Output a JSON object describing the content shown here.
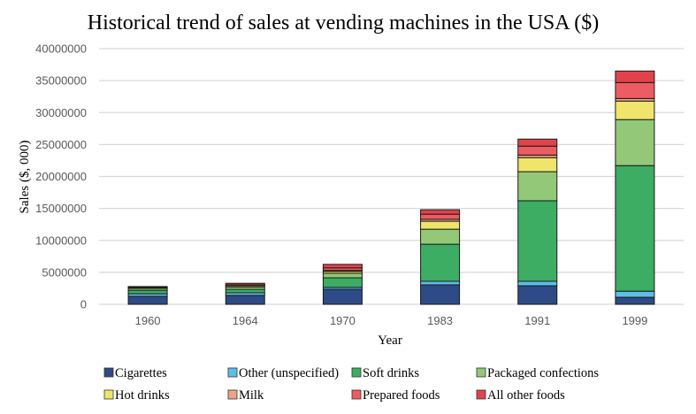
{
  "chart_data": {
    "type": "bar",
    "stacked": true,
    "title": "Historical trend of sales at vending machines in the USA ($)",
    "xlabel": "Year",
    "ylabel": "Sales ($, 000)",
    "ylim": [
      0,
      40000000
    ],
    "yticks": [
      0,
      5000000,
      10000000,
      15000000,
      20000000,
      25000000,
      30000000,
      35000000,
      40000000
    ],
    "ytick_labels": [
      "0",
      "5000000",
      "10000000",
      "15000000",
      "20000000",
      "25000000",
      "30000000",
      "35000000",
      "40000000"
    ],
    "grid": true,
    "legend_position": "bottom",
    "categories": [
      "1960",
      "1964",
      "1970",
      "1983",
      "1991",
      "1999"
    ],
    "series": [
      {
        "name": "Cigarettes",
        "color": "#2e4a87",
        "values": [
          1250000,
          1400000,
          2350000,
          3050000,
          2900000,
          1100000
        ]
      },
      {
        "name": "Other (unspecified)",
        "color": "#5bbfea",
        "values": [
          400000,
          400000,
          300000,
          550000,
          700000,
          950000
        ]
      },
      {
        "name": "Soft drinks",
        "color": "#3cad63",
        "values": [
          550000,
          550000,
          1500000,
          5800000,
          12600000,
          19650000
        ]
      },
      {
        "name": "Packaged confections",
        "color": "#93c878",
        "values": [
          300000,
          350000,
          700000,
          2350000,
          4550000,
          7200000
        ]
      },
      {
        "name": "Hot drinks",
        "color": "#efe56a",
        "values": [
          70000,
          200000,
          300000,
          1250000,
          2200000,
          2900000
        ]
      },
      {
        "name": "Milk",
        "color": "#eba584",
        "values": [
          70000,
          70000,
          150000,
          300000,
          400000,
          400000
        ]
      },
      {
        "name": "Prepared foods",
        "color": "#ec5c62",
        "values": [
          70000,
          70000,
          400000,
          800000,
          1400000,
          2500000
        ]
      },
      {
        "name": "All other foods",
        "color": "#e0434a",
        "values": [
          70000,
          250000,
          550000,
          700000,
          1100000,
          1800000
        ]
      }
    ]
  }
}
